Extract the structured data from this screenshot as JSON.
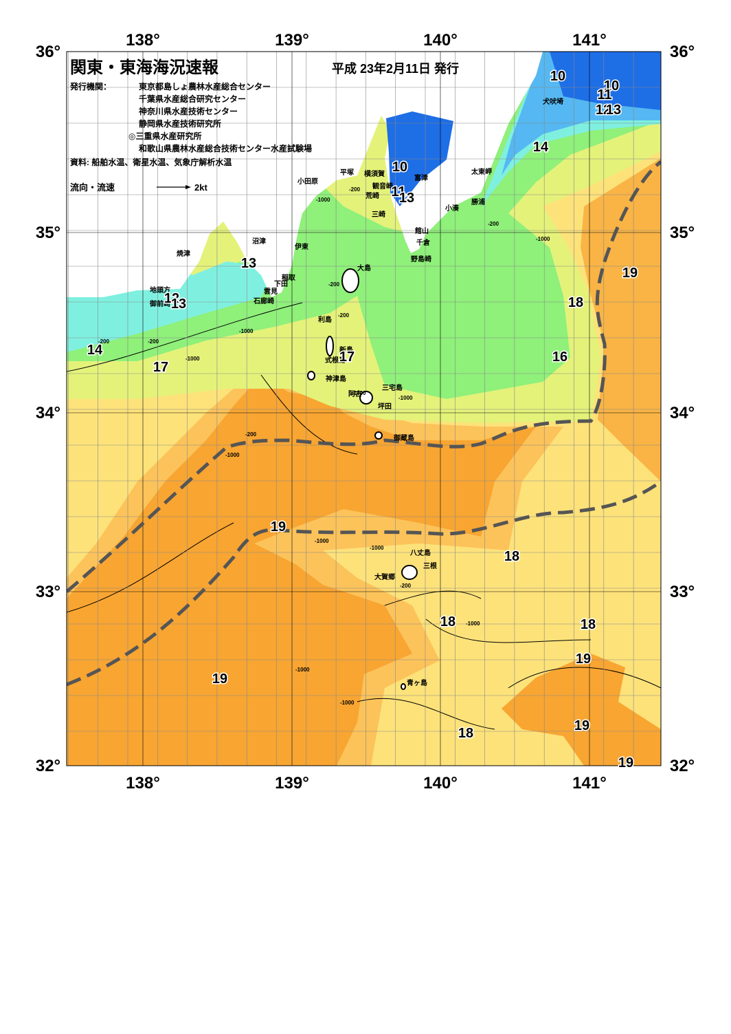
{
  "header": {
    "title": "関東・東海海況速報",
    "date": "平成 23年2月11日 発行",
    "publisher_label": "発行機関：",
    "publishers": [
      "東京都島しょ農林水産総合センター",
      "千葉県水産総合研究センター",
      "神奈川県水産技術センター",
      "静岡県水産技術研究所",
      "◎三重県水産研究所",
      "和歌山県農林水産総合技術センター水産試験場"
    ],
    "sources": "資料: 船舶水温、衛星水温、気象庁解析水温"
  },
  "legend": {
    "label": "流向・流速",
    "speed": "2kt"
  },
  "axes": {
    "lon_labels": [
      "138°",
      "139°",
      "140°",
      "141°"
    ],
    "lat_labels": [
      "36°",
      "35°",
      "34°",
      "33°",
      "32°"
    ]
  },
  "place_names": [
    "犬吠埼",
    "太東岬",
    "勝浦",
    "小湊",
    "館山",
    "千倉",
    "野島崎",
    "富津",
    "観音崎",
    "荒崎",
    "三崎",
    "横須賀",
    "平塚",
    "小田原",
    "沼津",
    "伊東",
    "大島",
    "稲取",
    "下田",
    "雲見",
    "石廊崎",
    "焼津",
    "地頭方",
    "御前崎",
    "利島",
    "新島",
    "式根島",
    "神津島",
    "三宅島",
    "阿古",
    "坪田",
    "御蔵島",
    "八丈島",
    "三根",
    "大賀郷",
    "青ヶ島"
  ],
  "temperature_labels": [
    "10",
    "10",
    "11",
    "12",
    "13",
    "14",
    "10",
    "11",
    "13",
    "13",
    "12",
    "13",
    "14",
    "17",
    "17",
    "16",
    "18",
    "19",
    "19",
    "18",
    "18",
    "18",
    "19",
    "19",
    "19",
    "18",
    "19"
  ],
  "depth_labels": [
    "-200",
    "-200",
    "-200",
    "-200",
    "-200",
    "-200",
    "-200",
    "-200",
    "-1000",
    "-1000",
    "-1000",
    "-1000",
    "-1000",
    "-1000",
    "-1000",
    "-1000",
    "-1000",
    "-1000",
    "-1000",
    "-1000"
  ]
}
